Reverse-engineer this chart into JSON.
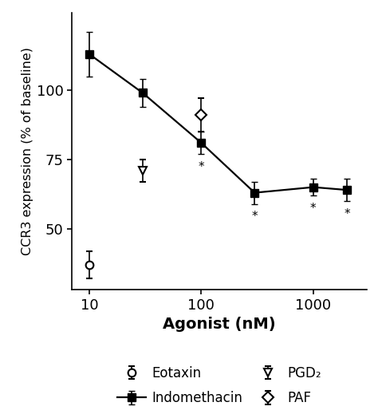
{
  "indomethacin_x": [
    10,
    30,
    100,
    300,
    1000,
    2000
  ],
  "indomethacin_y": [
    113,
    99,
    81,
    63,
    65,
    64
  ],
  "indomethacin_yerr": [
    8,
    5,
    4,
    4,
    3,
    4
  ],
  "indomethacin_sig": [
    false,
    false,
    true,
    true,
    true,
    true
  ],
  "eotaxin_x": [
    10
  ],
  "eotaxin_y": [
    37
  ],
  "eotaxin_yerr": [
    5
  ],
  "pgd2_x": [
    30
  ],
  "pgd2_y": [
    71
  ],
  "pgd2_yerr": [
    4
  ],
  "paf_x": [
    100
  ],
  "paf_y": [
    91
  ],
  "paf_yerr": [
    6
  ],
  "ylabel": "CCR3 expression (% of baseline)",
  "xlabel": "Agonist (nM)",
  "ylim": [
    28,
    128
  ],
  "yticks": [
    50,
    75,
    100
  ],
  "legend_labels": [
    "Eotaxin",
    "Indomethacin",
    "PGD₂",
    "PAF"
  ],
  "color": "#000000",
  "sig_label": "*",
  "xticks": [
    10,
    100,
    1000
  ],
  "xlim_low": 7,
  "xlim_high": 3000
}
